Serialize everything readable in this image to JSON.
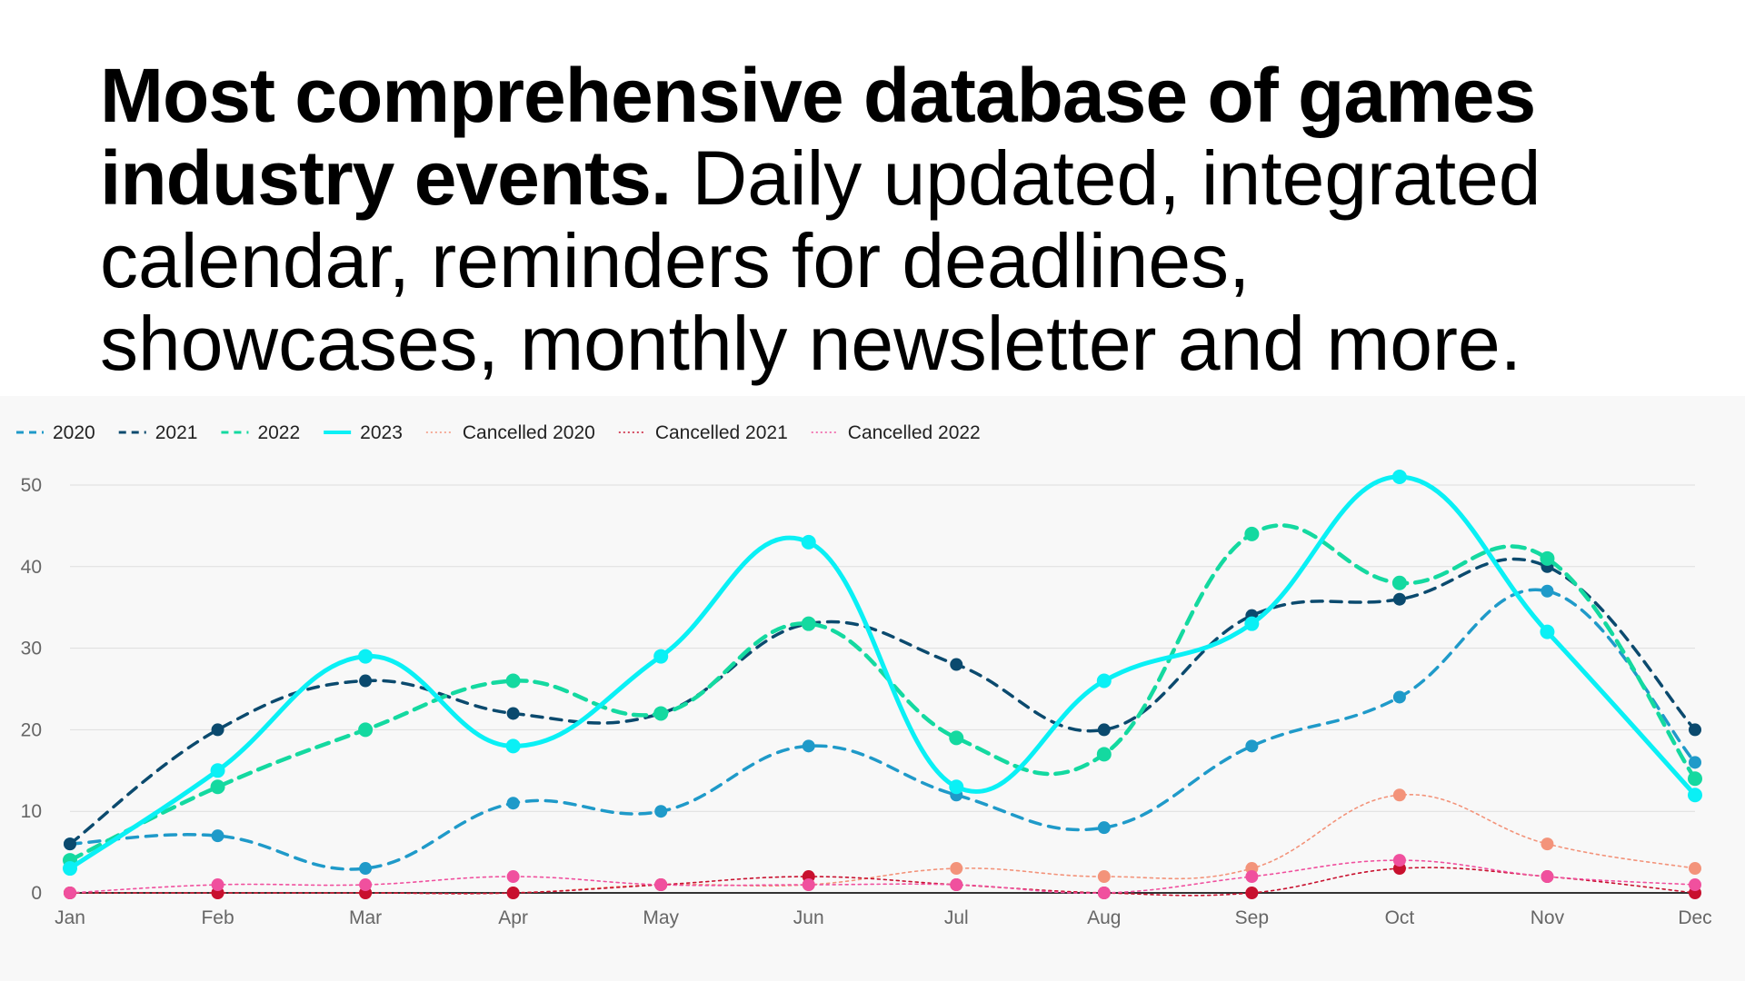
{
  "headline": {
    "bold": "Most comprehensive database of games industry events.",
    "light": " Daily updated, integrated calendar, reminders for deadlines, showcases, monthly newsletter and more."
  },
  "chart_data": {
    "type": "line",
    "categories": [
      "Jan",
      "Feb",
      "Mar",
      "Apr",
      "May",
      "Jun",
      "Jul",
      "Aug",
      "Sep",
      "Oct",
      "Nov",
      "Dec"
    ],
    "ylim": [
      0,
      50
    ],
    "yticks": [
      0,
      10,
      20,
      30,
      40,
      50
    ],
    "grid": true,
    "legend_position": "top-left",
    "series": [
      {
        "name": "2020",
        "style": "dashed",
        "width": 3.5,
        "color": "#1f9ac9",
        "marker": 7,
        "values": [
          6,
          7,
          3,
          11,
          10,
          18,
          12,
          8,
          18,
          24,
          37,
          16
        ]
      },
      {
        "name": "2021",
        "style": "dashed",
        "width": 3.5,
        "color": "#0b4a6e",
        "marker": 7,
        "values": [
          6,
          20,
          26,
          22,
          22,
          33,
          28,
          20,
          34,
          36,
          40,
          20
        ]
      },
      {
        "name": "2022",
        "style": "dashed-bold",
        "width": 4.5,
        "color": "#14d9a0",
        "marker": 8,
        "values": [
          4,
          13,
          20,
          26,
          22,
          33,
          19,
          17,
          44,
          38,
          41,
          14
        ]
      },
      {
        "name": "2023",
        "style": "solid",
        "width": 5,
        "color": "#0af0f5",
        "marker": 8,
        "values": [
          3,
          15,
          29,
          18,
          29,
          43,
          13,
          26,
          33,
          51,
          32,
          12
        ]
      },
      {
        "name": "Cancelled 2020",
        "style": "dotted",
        "width": 1.6,
        "color": "#f3937a",
        "marker": 7,
        "values": [
          0,
          0,
          0,
          0,
          1,
          1,
          3,
          2,
          3,
          12,
          6,
          3
        ]
      },
      {
        "name": "Cancelled 2021",
        "style": "dotted",
        "width": 1.6,
        "color": "#c8102e",
        "marker": 7,
        "values": [
          0,
          0,
          0,
          0,
          1,
          2,
          1,
          0,
          0,
          3,
          2,
          0
        ]
      },
      {
        "name": "Cancelled 2022",
        "style": "dotted",
        "width": 1.6,
        "color": "#f0509e",
        "marker": 7,
        "values": [
          0,
          1,
          1,
          2,
          1,
          1,
          1,
          0,
          2,
          4,
          2,
          1
        ]
      }
    ]
  }
}
